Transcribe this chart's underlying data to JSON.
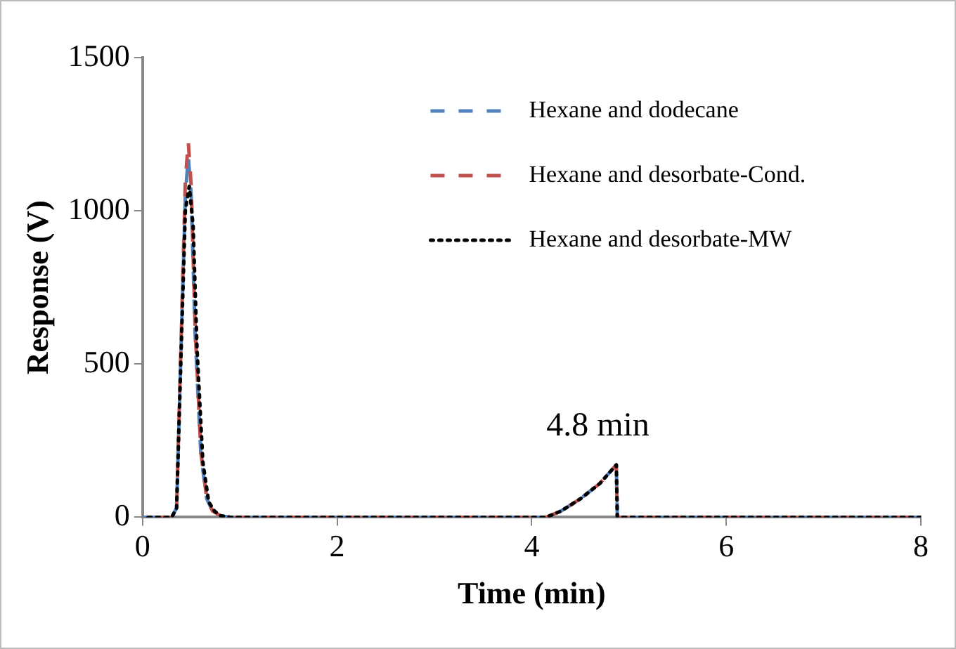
{
  "chart_data": {
    "type": "line",
    "xlabel": "Time (min)",
    "ylabel": "Response (V)",
    "xlim": [
      0,
      8
    ],
    "xticks": [
      0,
      2,
      4,
      6,
      8
    ],
    "ylim": [
      0,
      1500
    ],
    "yticks": [
      0,
      500,
      1000,
      1500
    ],
    "grid": false,
    "legend": "top right",
    "marker": "none",
    "annotations": [
      "4.8 min"
    ],
    "series": [
      {
        "name": "Hexane and dodecane",
        "color": "#4f81bd",
        "line_style": "dashed",
        "x": [
          0,
          0.3,
          0.35,
          0.4,
          0.44,
          0.47,
          0.5,
          0.54,
          0.6,
          0.66,
          0.72,
          0.8,
          0.9,
          1.2,
          2,
          3,
          4,
          4.15,
          4.3,
          4.5,
          4.7,
          4.87,
          4.88,
          5,
          6,
          7,
          8
        ],
        "values": [
          0,
          0,
          30,
          600,
          1050,
          1176,
          1050,
          600,
          200,
          60,
          20,
          5,
          0,
          0,
          0,
          0,
          0,
          0,
          20,
          60,
          110,
          171,
          0,
          0,
          0,
          0,
          0
        ]
      },
      {
        "name": "Hexane and desorbate-Cond.",
        "color": "#c0504d",
        "line_style": "dashed",
        "x": [
          0,
          0.3,
          0.35,
          0.4,
          0.44,
          0.47,
          0.5,
          0.54,
          0.6,
          0.66,
          0.72,
          0.8,
          0.9,
          1.2,
          2,
          3,
          4,
          4.15,
          4.3,
          4.5,
          4.7,
          4.87,
          4.88,
          5,
          6,
          7,
          8
        ],
        "values": [
          0,
          0,
          30,
          620,
          1100,
          1225,
          1080,
          620,
          210,
          60,
          20,
          5,
          0,
          0,
          0,
          0,
          0,
          0,
          20,
          60,
          110,
          171,
          0,
          0,
          0,
          0,
          0
        ]
      },
      {
        "name": "Hexane and desorbate-MW",
        "color": "#000000",
        "line_style": "dotted",
        "x": [
          0,
          0.3,
          0.35,
          0.4,
          0.44,
          0.48,
          0.52,
          0.56,
          0.62,
          0.68,
          0.74,
          0.8,
          0.9,
          1.2,
          2,
          3,
          4,
          4.15,
          4.3,
          4.5,
          4.7,
          4.87,
          4.88,
          5,
          6,
          7,
          8
        ],
        "values": [
          0,
          0,
          30,
          580,
          1000,
          1080,
          950,
          550,
          180,
          50,
          20,
          5,
          0,
          0,
          0,
          0,
          0,
          0,
          20,
          60,
          110,
          171,
          0,
          0,
          0,
          0,
          0
        ]
      }
    ]
  }
}
